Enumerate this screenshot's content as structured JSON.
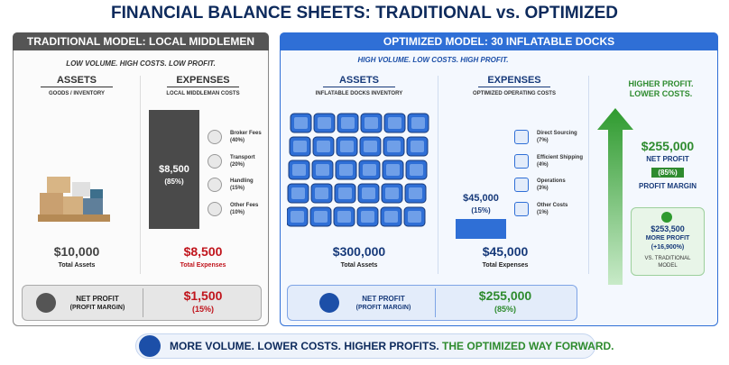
{
  "title": "FINANCIAL BALANCE SHEETS: TRADITIONAL vs. OPTIMIZED",
  "traditional": {
    "header": "TRADITIONAL MODEL: LOCAL MIDDLEMEN",
    "tagline": "LOW VOLUME. HIGH COSTS. LOW PROFIT.",
    "assets": {
      "title": "ASSETS",
      "subtitle": "GOODS / INVENTORY",
      "value": "$10,000",
      "label": "Total Assets"
    },
    "expenses": {
      "title": "EXPENSES",
      "subtitle": "LOCAL MIDDLEMAN COSTS",
      "bar_value": "$8,500",
      "bar_pct": "(85%)",
      "items": [
        {
          "name": "Broker Fees",
          "pct": "(40%)"
        },
        {
          "name": "Transport",
          "pct": "(20%)"
        },
        {
          "name": "Handling",
          "pct": "(15%)"
        },
        {
          "name": "Other Fees",
          "pct": "(10%)"
        }
      ],
      "value": "$8,500",
      "label": "Total Expenses"
    },
    "net": {
      "label": "NET PROFIT",
      "sublabel": "(PROFIT MARGIN)",
      "value": "$1,500",
      "pct": "(15%)"
    }
  },
  "optimized": {
    "header": "OPTIMIZED MODEL: 30 INFLATABLE DOCKS",
    "tagline": "HIGH VOLUME. LOW COSTS. HIGH PROFIT.",
    "assets": {
      "title": "ASSETS",
      "subtitle": "INFLATABLE DOCKS INVENTORY",
      "value": "$300,000",
      "label": "Total Assets"
    },
    "expenses": {
      "title": "EXPENSES",
      "subtitle": "OPTIMIZED OPERATING COSTS",
      "bar_value": "$45,000",
      "bar_pct": "(15%)",
      "items": [
        {
          "name": "Direct Sourcing",
          "pct": "(7%)"
        },
        {
          "name": "Efficient Shipping",
          "pct": "(4%)"
        },
        {
          "name": "Operations",
          "pct": "(3%)"
        },
        {
          "name": "Other Costs",
          "pct": "(1%)"
        }
      ],
      "value": "$45,000",
      "label": "Total Expenses"
    },
    "net": {
      "label": "NET PROFIT",
      "sublabel": "(PROFIT MARGIN)",
      "value": "$255,000",
      "pct": "(85%)"
    }
  },
  "summary": {
    "heading": "HIGHER PROFIT. LOWER COSTS.",
    "value": "$255,000",
    "label": "NET PROFIT",
    "pct": "(85%)",
    "margin_label": "PROFIT MARGIN",
    "gain": {
      "value": "$253,500",
      "label": "MORE PROFIT",
      "change": "(+16,900%)",
      "note": "VS. TRADITIONAL MODEL"
    }
  },
  "footer": {
    "main": "MORE VOLUME. LOWER COSTS. HIGHER PROFITS.",
    "highlight": "THE OPTIMIZED WAY FORWARD."
  }
}
